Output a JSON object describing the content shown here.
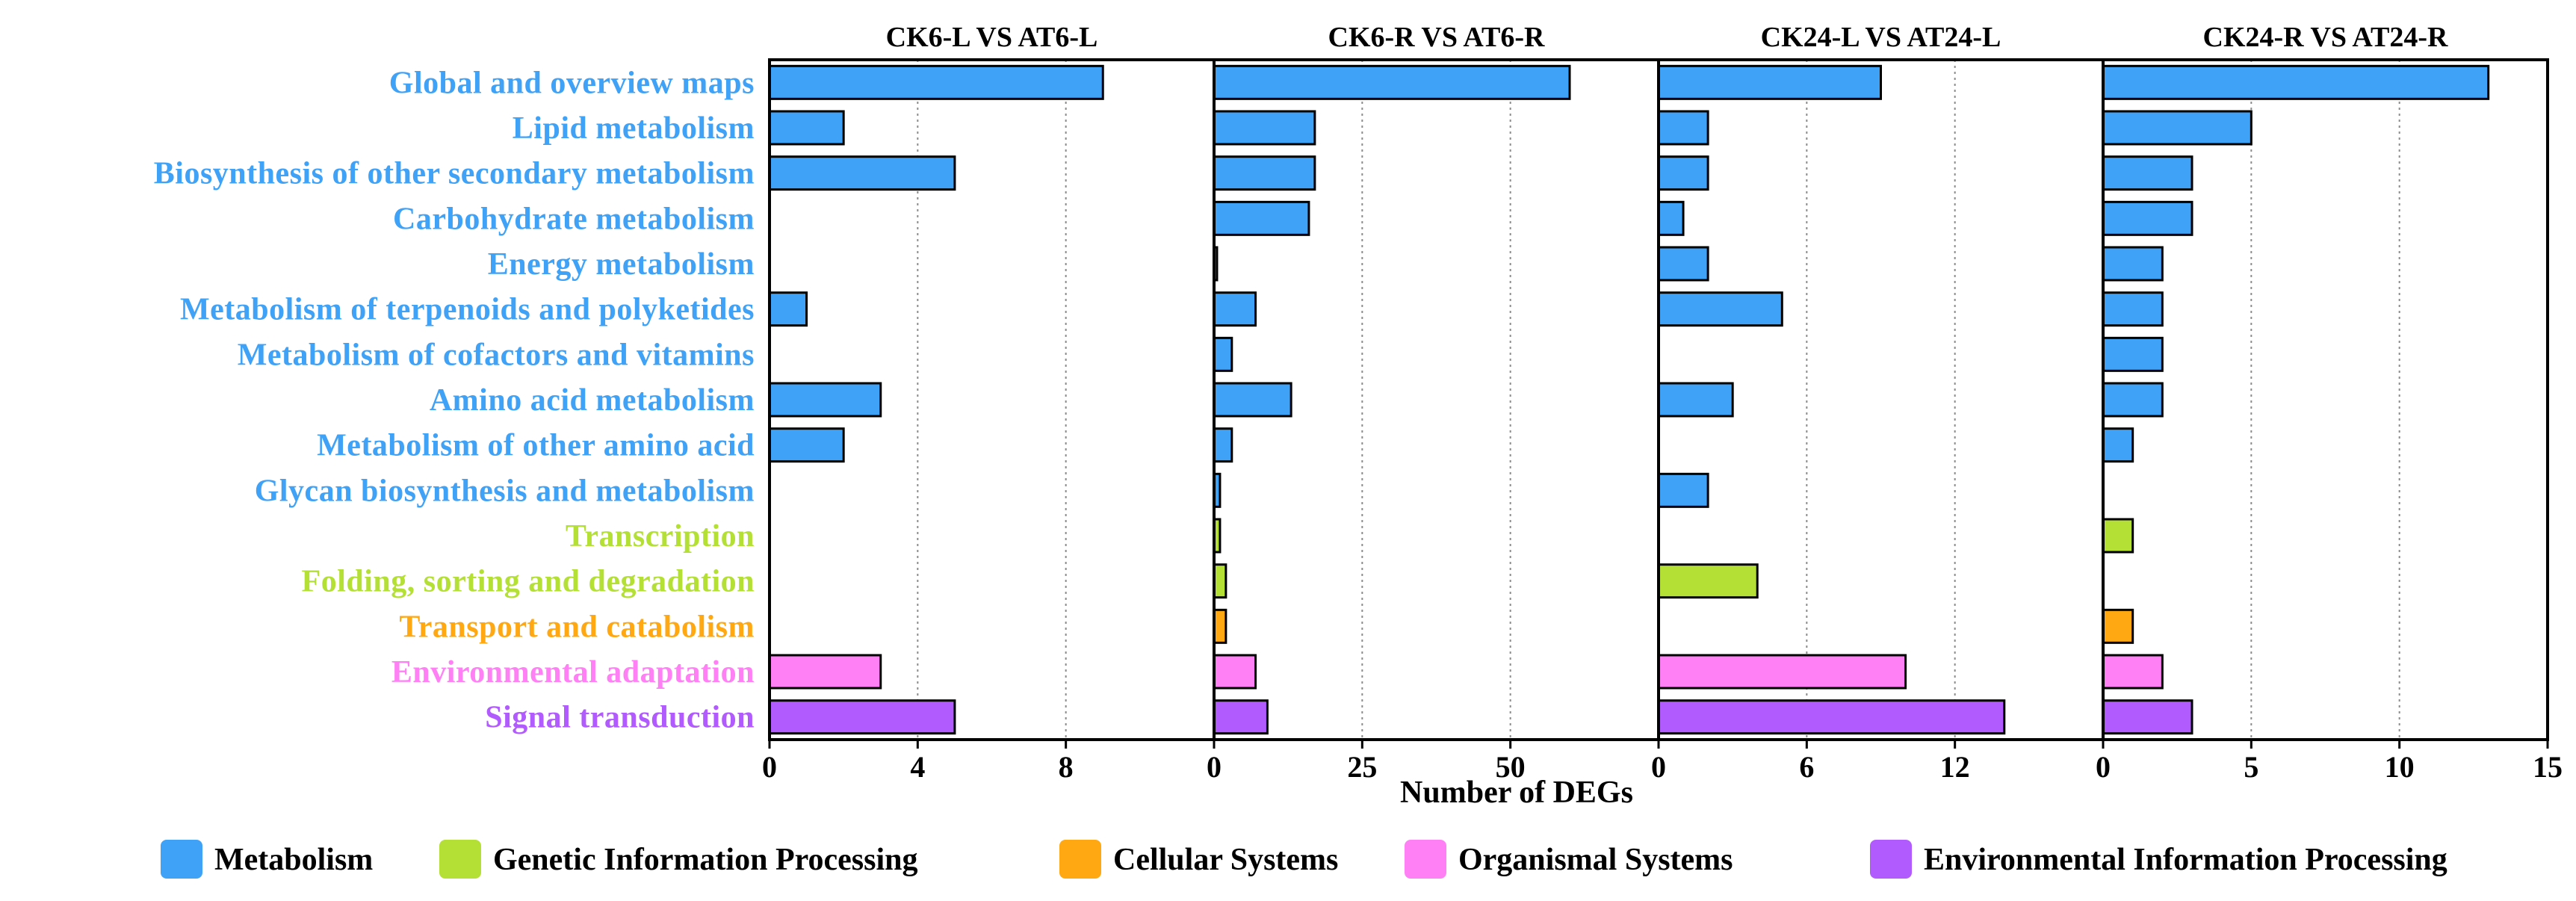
{
  "chart_data": {
    "type": "bar",
    "orientation": "horizontal",
    "xlabel": "Number of DEGs",
    "categories": [
      "Global and overview maps",
      "Lipid metabolism",
      "Biosynthesis of other secondary metabolism",
      "Carbohydrate metabolism",
      "Energy metabolism",
      "Metabolism of terpenoids and polyketides",
      "Metabolism of cofactors and vitamins",
      "Amino acid metabolism",
      "Metabolism of other amino acid",
      "Glycan biosynthesis and metabolism",
      "Transcription",
      "Folding, sorting and degradation",
      "Transport and catabolism",
      "Environmental adaptation",
      "Signal transduction"
    ],
    "category_groups": [
      "Metabolism",
      "Metabolism",
      "Metabolism",
      "Metabolism",
      "Metabolism",
      "Metabolism",
      "Metabolism",
      "Metabolism",
      "Metabolism",
      "Metabolism",
      "Genetic Information Processing",
      "Genetic Information Processing",
      "Cellular Systems",
      "Organismal Systems",
      "Environmental Information Processing"
    ],
    "groups": [
      {
        "name": "Metabolism",
        "color": "#3FA2F7"
      },
      {
        "name": "Genetic Information Processing",
        "color": "#B4E036"
      },
      {
        "name": "Cellular Systems",
        "color": "#FFA812"
      },
      {
        "name": "Organismal Systems",
        "color": "#FF80F5"
      },
      {
        "name": "Environmental Information Processing",
        "color": "#B15BFF"
      }
    ],
    "panels": [
      {
        "title": "CK6-L VS AT6-L",
        "xlim": [
          0,
          12
        ],
        "ticks": [
          0,
          4,
          8
        ],
        "values": [
          9,
          2,
          5,
          0,
          0,
          1,
          0,
          3,
          2,
          0,
          0,
          0,
          0,
          3,
          5
        ]
      },
      {
        "title": "CK6-R VS AT6-R",
        "xlim": [
          0,
          75
        ],
        "ticks": [
          0,
          25,
          50
        ],
        "values": [
          60,
          17,
          17,
          16,
          0.5,
          7,
          3,
          13,
          3,
          1,
          1,
          2,
          2,
          7,
          9
        ]
      },
      {
        "title": "CK24-L VS AT24-L",
        "xlim": [
          0,
          18
        ],
        "ticks": [
          0,
          6,
          12
        ],
        "values": [
          9,
          2,
          2,
          1,
          2,
          5,
          0,
          3,
          0,
          2,
          0,
          4,
          0,
          10,
          14
        ]
      },
      {
        "title": "CK24-R VS AT24-R",
        "xlim": [
          0,
          15
        ],
        "ticks": [
          0,
          5,
          10,
          15
        ],
        "values": [
          13,
          5,
          3,
          3,
          2,
          2,
          2,
          2,
          1,
          0,
          1,
          0,
          1,
          2,
          3
        ]
      }
    ]
  }
}
